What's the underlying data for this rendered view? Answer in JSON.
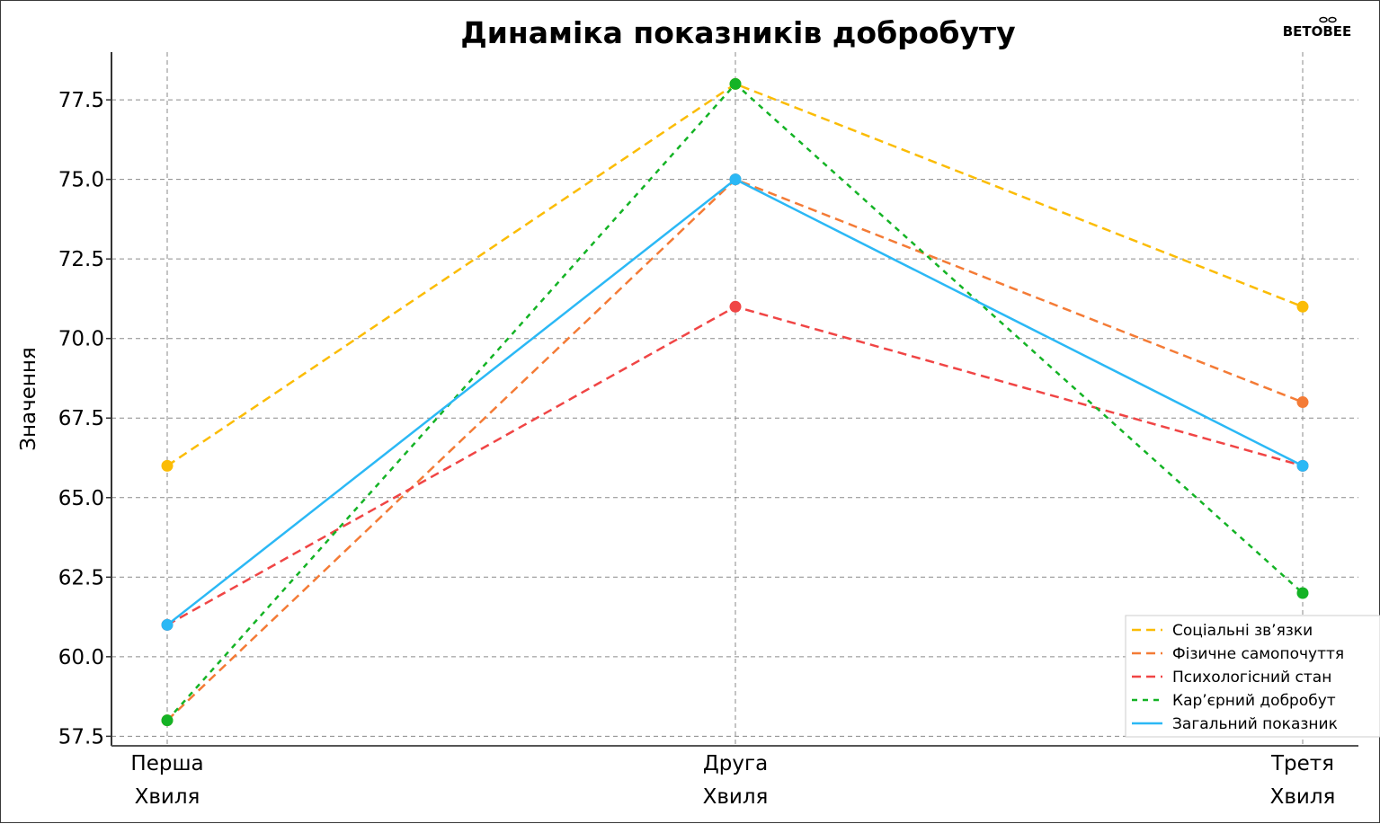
{
  "logo": {
    "text": "BETOBEE"
  },
  "chart_data": {
    "type": "line",
    "title": "Динаміка показників добробуту",
    "xlabel": "",
    "ylabel": "Значення",
    "categories": [
      [
        "Перша",
        "Хвиля"
      ],
      [
        "Друга",
        "Хвиля"
      ],
      [
        "Третя",
        "Хвиля"
      ]
    ],
    "ylim": [
      57.2,
      79.0
    ],
    "yticks": [
      "57.5",
      "60.0",
      "62.5",
      "65.0",
      "67.5",
      "70.0",
      "72.5",
      "75.0",
      "77.5"
    ],
    "grid": true,
    "legend_position": "bottom-right",
    "series": [
      {
        "name": "Соціальні зв’язки",
        "values": [
          66,
          78,
          71
        ],
        "color": "#fbbc05",
        "dash": "dashed"
      },
      {
        "name": "Фізичне самопочуття",
        "values": [
          58,
          75,
          68
        ],
        "color": "#f47b36",
        "dash": "dashed"
      },
      {
        "name": "Психологісний стан",
        "values": [
          61,
          71,
          66
        ],
        "color": "#f04545",
        "dash": "dashed"
      },
      {
        "name": "Кар’єрний добробут",
        "values": [
          58,
          78,
          62
        ],
        "color": "#14b325",
        "dash": "dotted"
      },
      {
        "name": "Загальний показник",
        "values": [
          61,
          75,
          66
        ],
        "color": "#2bb8f5",
        "dash": "solid"
      }
    ]
  }
}
